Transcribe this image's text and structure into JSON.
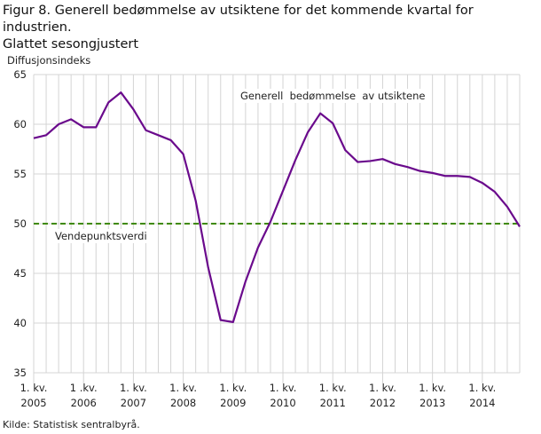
{
  "title_line1": "Figur 8. Generell bedømmelse av utsiktene for det kommende kvartal for industrien.",
  "title_line2": "Glattet sesongjustert",
  "source": "Kilde: Statistisk sentralbyrå.",
  "chart_data": {
    "type": "line",
    "ylabel": "Diffusjonsindeks",
    "ylim": [
      35,
      65
    ],
    "yticks": [
      35,
      40,
      45,
      50,
      55,
      60,
      65
    ],
    "grid": true,
    "x_tick_labels": [
      {
        "line1": "1. kv.",
        "line2": "2005"
      },
      {
        "line1": "1 .kv.",
        "line2": "2006"
      },
      {
        "line1": "1. kv.",
        "line2": "2007"
      },
      {
        "line1": "1. kv.",
        "line2": "2008"
      },
      {
        "line1": "1. kv.",
        "line2": "2009"
      },
      {
        "line1": "1. kv.",
        "line2": "2010"
      },
      {
        "line1": "1. kv.",
        "line2": "2011"
      },
      {
        "line1": "1. kv.",
        "line2": "2012"
      },
      {
        "line1": "1. kv.",
        "line2": "2013"
      },
      {
        "line1": "1. kv.",
        "line2": "2014"
      }
    ],
    "series": [
      {
        "name": "Generell  bedømmelse  av utsiktene",
        "color": "#6a0a8c",
        "values": [
          58.6,
          58.9,
          60.0,
          60.5,
          59.7,
          59.7,
          62.2,
          63.2,
          61.5,
          59.4,
          58.9,
          58.4,
          57.0,
          52.3,
          45.6,
          40.3,
          40.1,
          44.2,
          47.6,
          50.2,
          53.3,
          56.4,
          59.2,
          61.1,
          60.1,
          57.4,
          56.2,
          56.3,
          56.5,
          56.0,
          55.7,
          55.3,
          55.1,
          54.8,
          54.8,
          54.7,
          54.1,
          53.2,
          51.7,
          49.7
        ]
      }
    ],
    "reference_line": {
      "name": "Vendepunktsverdi",
      "value": 50,
      "color": "#3f8a00",
      "style": "dashed"
    }
  }
}
